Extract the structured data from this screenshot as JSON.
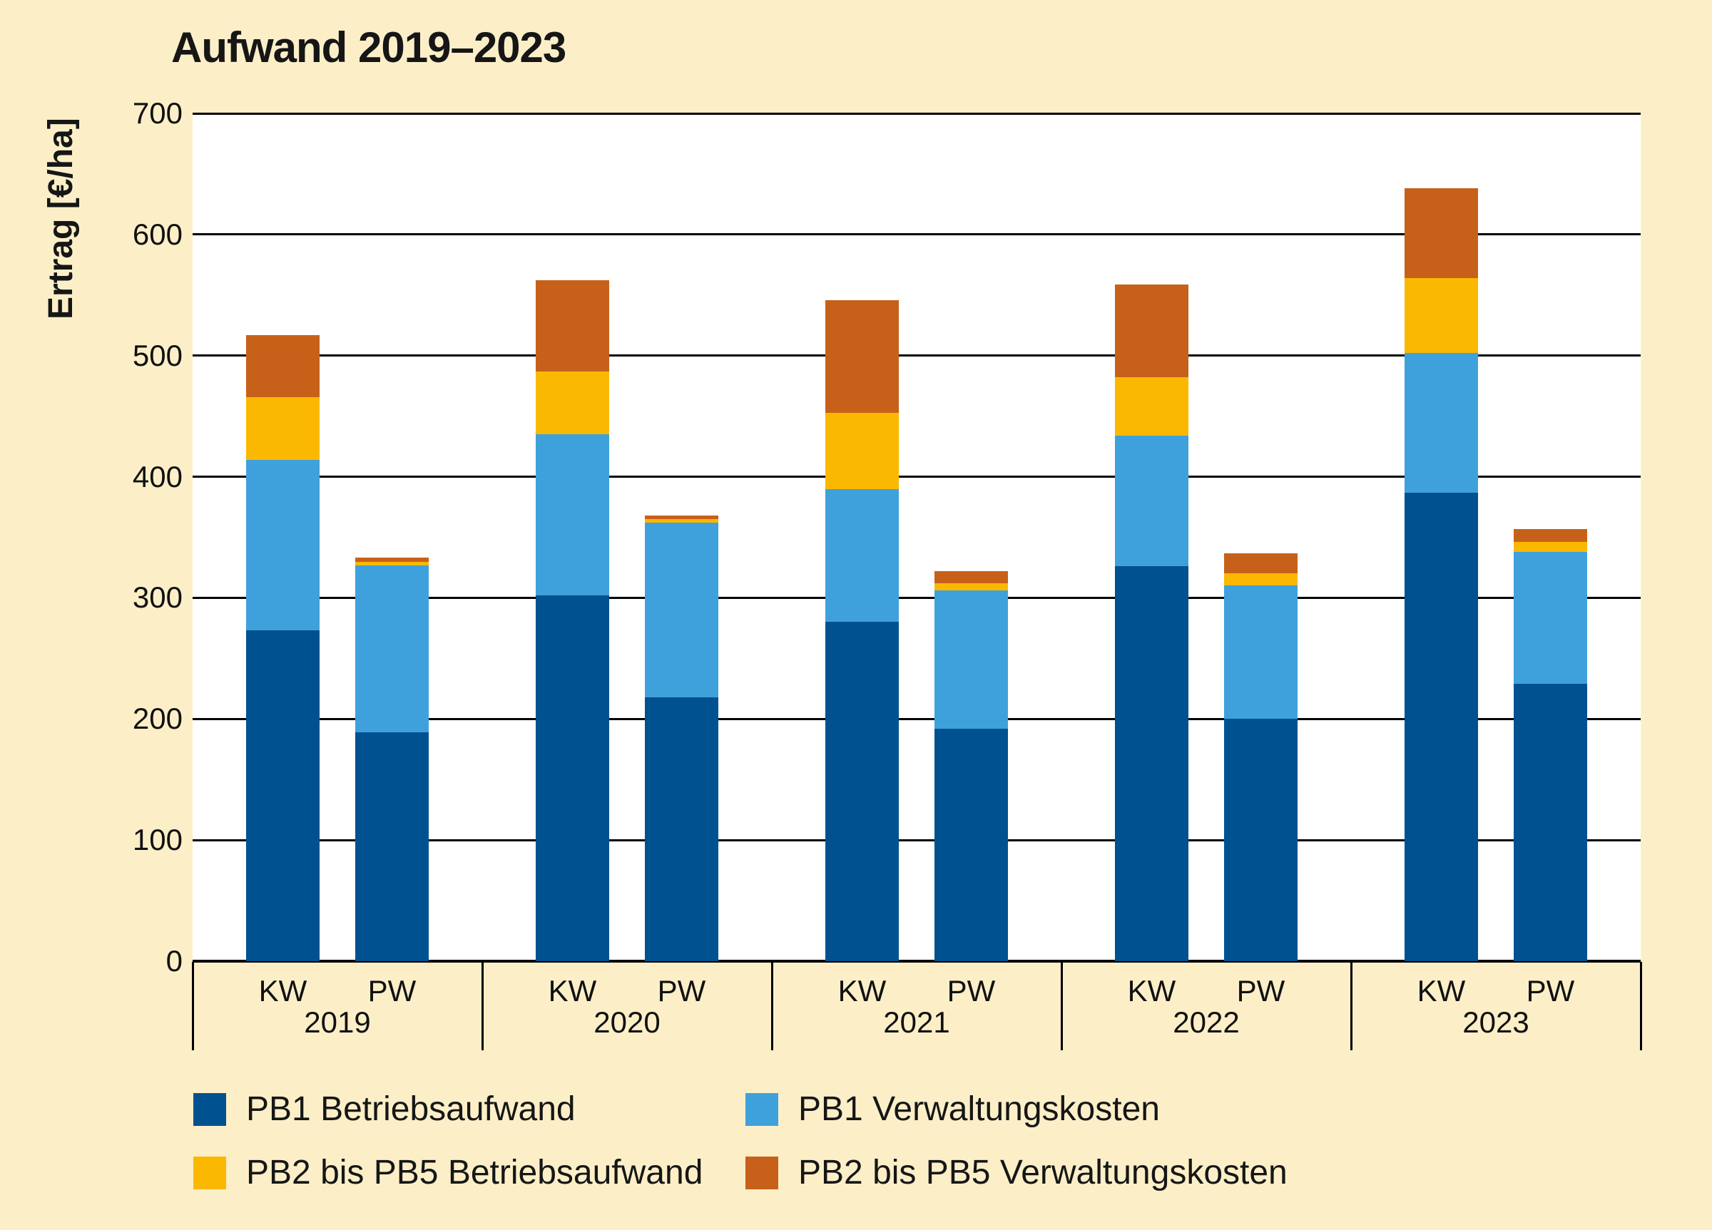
{
  "title": "Aufwand 2019–2023",
  "y_axis": {
    "label": "Ertrag [€/ha]",
    "min": 0,
    "max": 700,
    "step": 100,
    "ticks": [
      700,
      600,
      500,
      400,
      300,
      200,
      100,
      0
    ]
  },
  "colors": {
    "background": "#FCEFC8",
    "plot_background": "#ffffff",
    "grid": "#000000",
    "text": "#161616",
    "pb1_betriebsaufwand": "#00518F",
    "pb1_verwaltungskosten": "#3FA1DB",
    "pb2_pb5_betriebsaufwand": "#FBB800",
    "pb2_pb5_verwaltungskosten": "#C7611A"
  },
  "legend": [
    {
      "label": "PB1 Betriebsaufwand",
      "color": "#00518F"
    },
    {
      "label": "PB1 Verwaltungskosten",
      "color": "#3FA1DB"
    },
    {
      "label": "PB2 bis PB5 Betriebsaufwand",
      "color": "#FBB800"
    },
    {
      "label": "PB2 bis PB5 Verwaltungskosten",
      "color": "#C7611A"
    }
  ],
  "chart_data": {
    "type": "bar",
    "stacked": true,
    "title": "Aufwand 2019–2023",
    "ylabel": "Ertrag [€/ha]",
    "ylim": [
      0,
      700
    ],
    "grid": true,
    "legend_position": "bottom",
    "groups": [
      "2019",
      "2020",
      "2021",
      "2022",
      "2023"
    ],
    "bars_per_group": [
      "KW",
      "PW"
    ],
    "categories": [
      "2019 KW",
      "2019 PW",
      "2020 KW",
      "2020 PW",
      "2021 KW",
      "2021 PW",
      "2022 KW",
      "2022 PW",
      "2023 KW",
      "2023 PW"
    ],
    "series": [
      {
        "name": "PB1 Betriebsaufwand",
        "color": "#00518F",
        "values": [
          273,
          189,
          302,
          218,
          280,
          192,
          326,
          200,
          387,
          229
        ]
      },
      {
        "name": "PB1 Verwaltungskosten",
        "color": "#3FA1DB",
        "values": [
          141,
          138,
          133,
          144,
          110,
          114,
          108,
          110,
          115,
          109
        ]
      },
      {
        "name": "PB2 bis PB5 Betriebsaufwand",
        "color": "#FBB800",
        "values": [
          52,
          3,
          52,
          3,
          63,
          6,
          48,
          10,
          62,
          8
        ]
      },
      {
        "name": "PB2 bis PB5 Verwaltungskosten",
        "color": "#C7611A",
        "values": [
          51,
          3,
          75,
          3,
          93,
          10,
          77,
          17,
          74,
          11
        ]
      }
    ],
    "totals": [
      517,
      333,
      562,
      368,
      546,
      322,
      559,
      337,
      638,
      357
    ]
  }
}
